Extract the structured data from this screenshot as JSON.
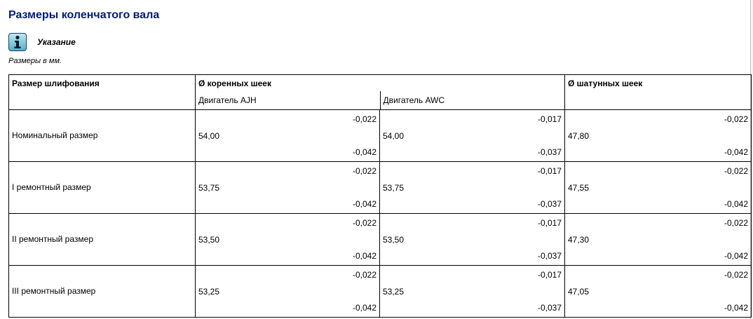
{
  "page": {
    "title": "Размеры коленчатого вала",
    "note_label": "Указание",
    "subtitle": "Размеры в мм."
  },
  "icons": {
    "note": "info-icon"
  },
  "colors": {
    "title": "#001c7a",
    "note_icon": "#57b0c4"
  },
  "table": {
    "headers": {
      "size": "Размер шлифования",
      "main_journals": "Ø коренных шеек",
      "conrod_journals": "Ø шатунных шеек"
    },
    "engines": [
      "Двигатель AJH",
      "Двигатель AWC"
    ],
    "rows": [
      {
        "label": "Номинальный размер",
        "cells": [
          {
            "up": "-0,022",
            "value": "54,00",
            "down": "-0,042"
          },
          {
            "up": "-0,017",
            "value": "54,00",
            "down": "-0,037"
          },
          {
            "up": "-0,022",
            "value": "47,80",
            "down": "-0,042"
          }
        ]
      },
      {
        "label": "I ремонтный размер",
        "cells": [
          {
            "up": "-0,022",
            "value": "53,75",
            "down": "-0,042"
          },
          {
            "up": "-0,017",
            "value": "53,75",
            "down": "-0,037"
          },
          {
            "up": "-0,022",
            "value": "47,55",
            "down": "-0,042"
          }
        ]
      },
      {
        "label": "II ремонтный размер",
        "cells": [
          {
            "up": "-0,022",
            "value": "53,50",
            "down": "-0,042"
          },
          {
            "up": "-0,017",
            "value": "53,50",
            "down": "-0,037"
          },
          {
            "up": "-0,022",
            "value": "47,30",
            "down": "-0,042"
          }
        ]
      },
      {
        "label": "III ремонтный размер",
        "cells": [
          {
            "up": "-0,022",
            "value": "53,25",
            "down": "-0,042"
          },
          {
            "up": "-0,017",
            "value": "53,25",
            "down": "-0,037"
          },
          {
            "up": "-0,022",
            "value": "47,05",
            "down": "-0,042"
          }
        ]
      }
    ]
  }
}
